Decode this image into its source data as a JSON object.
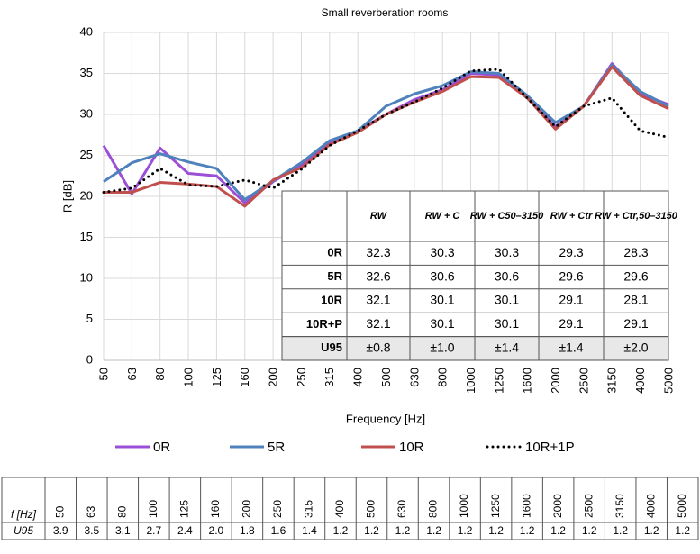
{
  "chart_data": {
    "type": "line",
    "title": "Small reverberation rooms",
    "x_label": "Frequency [Hz]",
    "y_label": "R [dB]",
    "categories": [
      "50",
      "63",
      "80",
      "100",
      "125",
      "160",
      "200",
      "250",
      "315",
      "400",
      "500",
      "630",
      "800",
      "1000",
      "1250",
      "1600",
      "2000",
      "2500",
      "3150",
      "4000",
      "5000"
    ],
    "ylim": [
      0,
      40
    ],
    "yticks": [
      0,
      5,
      10,
      15,
      20,
      25,
      30,
      35,
      40
    ],
    "grid": true,
    "series": [
      {
        "name": "0R",
        "color": "#9b4fd6",
        "style": "solid",
        "values": [
          26.2,
          20.3,
          25.9,
          22.8,
          22.5,
          19.2,
          21.8,
          23.8,
          26.5,
          28.0,
          30.0,
          31.8,
          33.0,
          35.0,
          34.8,
          32.0,
          28.5,
          31.0,
          36.2,
          32.5,
          31.2
        ]
      },
      {
        "name": "5R",
        "color": "#4f81bd",
        "style": "solid",
        "values": [
          21.8,
          24.1,
          25.2,
          24.2,
          23.4,
          19.6,
          21.9,
          24.1,
          26.8,
          28.0,
          31.0,
          32.5,
          33.5,
          35.2,
          35.0,
          32.3,
          29.0,
          31.0,
          36.0,
          32.8,
          31.0
        ]
      },
      {
        "name": "10R",
        "color": "#c0504d",
        "style": "solid",
        "values": [
          20.5,
          20.5,
          21.7,
          21.5,
          21.2,
          18.8,
          22.0,
          23.5,
          26.3,
          27.8,
          30.0,
          31.5,
          32.8,
          34.6,
          34.5,
          32.0,
          28.2,
          31.0,
          35.8,
          32.3,
          30.7
        ]
      },
      {
        "name": "10R+1P",
        "color": "#000000",
        "style": "dotted",
        "values": [
          20.5,
          21.0,
          23.4,
          21.4,
          21.2,
          22.0,
          21.0,
          23.3,
          26.2,
          28.0,
          30.0,
          31.5,
          33.2,
          35.3,
          35.5,
          32.0,
          28.5,
          31.0,
          32.0,
          28.0,
          27.2
        ]
      }
    ]
  },
  "inset_table": {
    "header": [
      "RW",
      "RW + C",
      "RW + C50–3150",
      "RW + Ctr",
      "RW + Ctr,50–3150"
    ],
    "rows": [
      [
        "0R",
        "32.3",
        "30.3",
        "30.3",
        "29.3",
        "28.3"
      ],
      [
        "5R",
        "32.6",
        "30.6",
        "30.6",
        "29.6",
        "29.6"
      ],
      [
        "10R",
        "32.1",
        "30.1",
        "30.1",
        "29.1",
        "28.1"
      ],
      [
        "10R+P",
        "32.1",
        "30.1",
        "30.1",
        "29.1",
        "29.1"
      ],
      [
        "U95",
        "±0.8",
        "±1.0",
        "±1.4",
        "±1.4",
        "±2.0"
      ]
    ]
  },
  "bottom_table": {
    "row_labels": [
      "f [Hz]",
      "U95"
    ],
    "u95": [
      "3.9",
      "3.5",
      "3.1",
      "2.7",
      "2.4",
      "2.0",
      "1.8",
      "1.6",
      "1.4",
      "1.2",
      "1.2",
      "1.2",
      "1.2",
      "1.2",
      "1.2",
      "1.2",
      "1.2",
      "1.2",
      "1.2",
      "1.2",
      "1.2"
    ]
  }
}
